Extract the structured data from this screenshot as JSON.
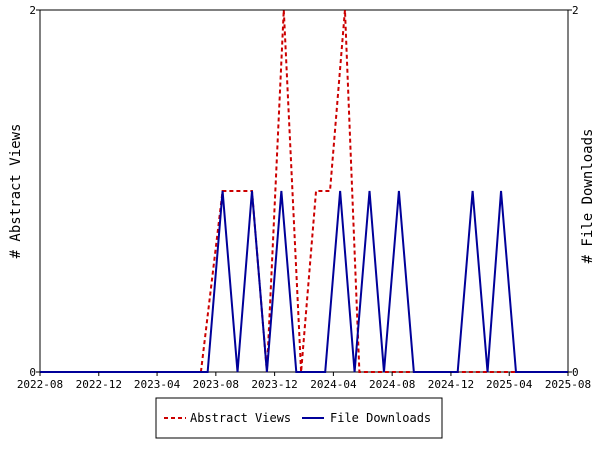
{
  "chart_data": {
    "type": "line",
    "x_ticks": [
      "2022-08",
      "2022-12",
      "2023-04",
      "2023-08",
      "2023-12",
      "2024-04",
      "2024-08",
      "2024-12",
      "2025-04",
      "2025-08"
    ],
    "y_ticks_left": [
      "0",
      "2"
    ],
    "y_ticks_right": [
      "0",
      "2"
    ],
    "ylabel_left": "# Abstract Views",
    "ylabel_right": "# File Downloads",
    "ylim": [
      0,
      2
    ],
    "grid": false,
    "legend_position": "bottom",
    "series": [
      {
        "name": "Abstract Views",
        "color": "#cc0000",
        "style": "dashed",
        "points": [
          {
            "x": "2022-08-01",
            "y": 0
          },
          {
            "x": "2023-07-01",
            "y": 0
          },
          {
            "x": "2023-08-15",
            "y": 1
          },
          {
            "x": "2023-10-15",
            "y": 1
          },
          {
            "x": "2023-11-15",
            "y": 0
          },
          {
            "x": "2023-12-20",
            "y": 2
          },
          {
            "x": "2024-01-25",
            "y": 0
          },
          {
            "x": "2024-02-25",
            "y": 1
          },
          {
            "x": "2024-03-25",
            "y": 1
          },
          {
            "x": "2024-04-25",
            "y": 2
          },
          {
            "x": "2024-05-25",
            "y": 0
          },
          {
            "x": "2025-08-31",
            "y": 0
          }
        ]
      },
      {
        "name": "File Downloads",
        "color": "#000099",
        "style": "solid",
        "points": [
          {
            "x": "2022-08-01",
            "y": 0
          },
          {
            "x": "2023-07-15",
            "y": 0
          },
          {
            "x": "2023-08-15",
            "y": 1
          },
          {
            "x": "2023-09-15",
            "y": 0
          },
          {
            "x": "2023-10-15",
            "y": 1
          },
          {
            "x": "2023-11-15",
            "y": 0
          },
          {
            "x": "2023-12-15",
            "y": 1
          },
          {
            "x": "2024-01-15",
            "y": 0
          },
          {
            "x": "2024-03-15",
            "y": 0
          },
          {
            "x": "2024-04-15",
            "y": 1
          },
          {
            "x": "2024-05-15",
            "y": 0
          },
          {
            "x": "2024-06-15",
            "y": 1
          },
          {
            "x": "2024-07-15",
            "y": 0
          },
          {
            "x": "2024-08-15",
            "y": 1
          },
          {
            "x": "2024-09-15",
            "y": 0
          },
          {
            "x": "2024-12-15",
            "y": 0
          },
          {
            "x": "2025-01-15",
            "y": 1
          },
          {
            "x": "2025-02-15",
            "y": 0
          },
          {
            "x": "2025-03-15",
            "y": 1
          },
          {
            "x": "2025-04-15",
            "y": 0
          },
          {
            "x": "2025-08-31",
            "y": 0
          }
        ]
      }
    ]
  }
}
